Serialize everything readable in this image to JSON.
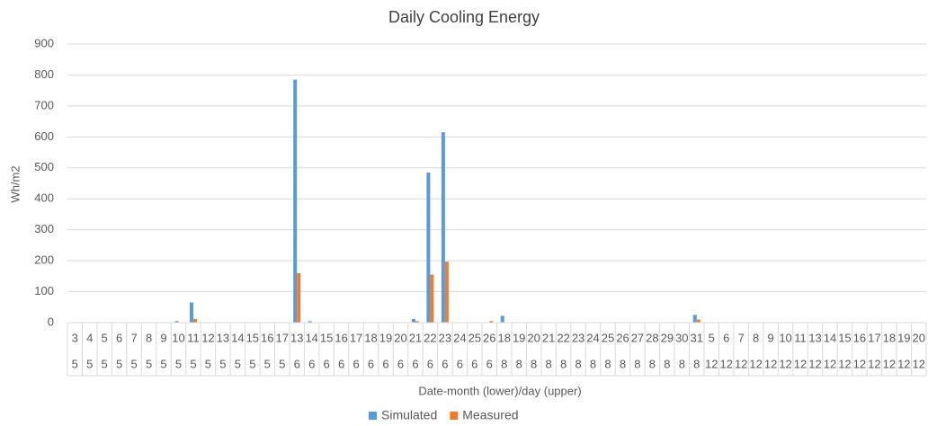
{
  "chart_data": {
    "type": "bar",
    "title": "Daily Cooling Energy",
    "y_label": "Wh/m2",
    "x_label": "Date-month (lower)/day (upper)",
    "categories": [
      "3",
      "4",
      "5",
      "6",
      "7",
      "8",
      "9",
      "10",
      "11",
      "12",
      "13",
      "14",
      "15",
      "16",
      "17",
      "13",
      "14",
      "15",
      "16",
      "17",
      "18",
      "19",
      "20",
      "21",
      "22",
      "23",
      "24",
      "25",
      "26",
      "18",
      "19",
      "20",
      "21",
      "22",
      "23",
      "24",
      "25",
      "26",
      "27",
      "28",
      "29",
      "30",
      "31",
      "5",
      "6",
      "7",
      "8",
      "9",
      "10",
      "11",
      "13",
      "14",
      "15",
      "16",
      "17",
      "18",
      "19",
      "20"
    ],
    "category_groups": [
      "5",
      "5",
      "5",
      "5",
      "5",
      "5",
      "5",
      "5",
      "5",
      "5",
      "5",
      "5",
      "5",
      "5",
      "5",
      "6",
      "6",
      "6",
      "6",
      "6",
      "6",
      "6",
      "6",
      "6",
      "6",
      "6",
      "6",
      "6",
      "6",
      "8",
      "8",
      "8",
      "8",
      "8",
      "8",
      "8",
      "8",
      "8",
      "8",
      "8",
      "8",
      "8",
      "8",
      "12",
      "12",
      "12",
      "12",
      "12",
      "12",
      "12",
      "12",
      "12",
      "12",
      "12",
      "12",
      "12",
      "12",
      "12"
    ],
    "series": [
      {
        "name": "Simulated",
        "color": "#5b9bd5",
        "values": [
          0,
          0,
          0,
          0,
          0,
          0,
          0,
          5,
          65,
          0,
          0,
          0,
          0,
          0,
          0,
          785,
          5,
          0,
          0,
          0,
          0,
          0,
          0,
          12,
          485,
          615,
          0,
          0,
          0,
          22,
          0,
          0,
          0,
          0,
          0,
          0,
          0,
          0,
          0,
          0,
          0,
          0,
          25,
          0,
          0,
          0,
          0,
          0,
          0,
          0,
          0,
          0,
          0,
          0,
          0,
          0,
          0,
          0
        ]
      },
      {
        "name": "Measured",
        "color": "#ed7d31",
        "values": [
          0,
          0,
          0,
          0,
          0,
          0,
          0,
          0,
          12,
          0,
          0,
          0,
          0,
          0,
          0,
          160,
          0,
          0,
          0,
          0,
          0,
          0,
          0,
          5,
          155,
          197,
          0,
          0,
          5,
          0,
          0,
          0,
          0,
          0,
          0,
          0,
          0,
          0,
          0,
          0,
          0,
          0,
          10,
          0,
          0,
          0,
          0,
          0,
          0,
          0,
          0,
          0,
          0,
          0,
          0,
          0,
          0,
          0
        ]
      }
    ],
    "ylim": [
      0,
      900
    ],
    "yticks": [
      0,
      100,
      200,
      300,
      400,
      500,
      600,
      700,
      800,
      900
    ],
    "grid": true,
    "legend": "bottom"
  }
}
